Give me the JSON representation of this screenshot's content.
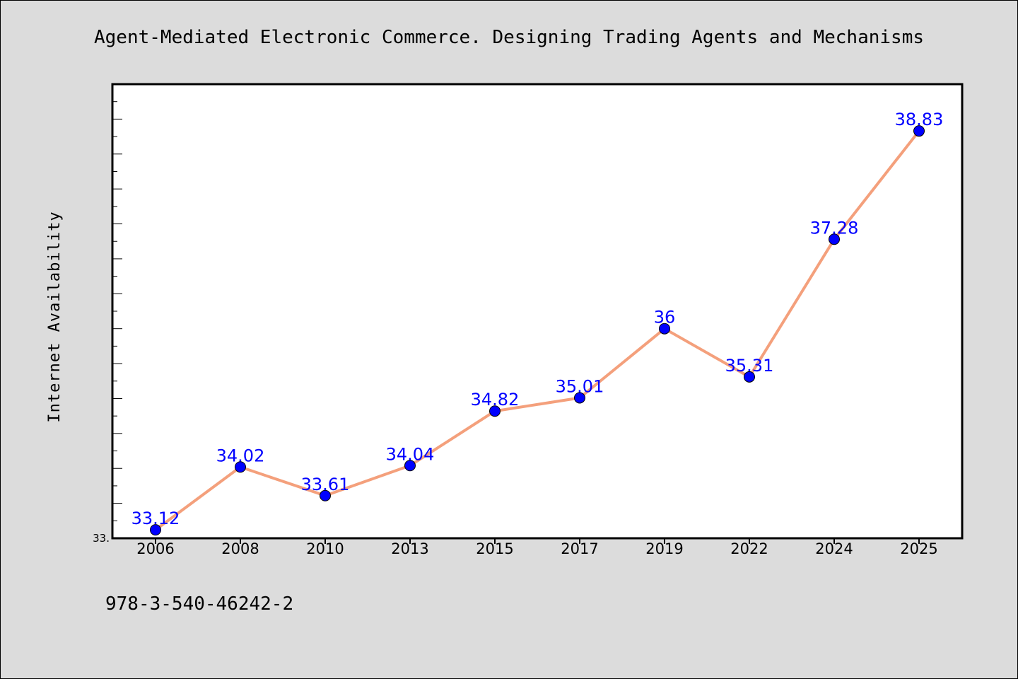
{
  "chart_data": {
    "type": "line",
    "title": "Agent-Mediated Electronic Commerce. Designing Trading Agents and Mechanisms",
    "xlabel": "",
    "ylabel": "Internet Availability",
    "categories": [
      "2006",
      "2008",
      "2010",
      "2013",
      "2015",
      "2017",
      "2019",
      "2022",
      "2024",
      "2025"
    ],
    "series": [
      {
        "values": [
          33.12,
          34.02,
          33.61,
          34.04,
          34.82,
          35.01,
          36,
          35.31,
          37.28,
          38.83
        ],
        "labels": [
          "33.12",
          "34.02",
          "33.61",
          "34.04",
          "34.82",
          "35.01",
          "36",
          "35.31",
          "37.28",
          "38.83"
        ]
      }
    ],
    "ylim": [
      33,
      39.5
    ],
    "y_tick_label": "33.",
    "grid": false,
    "colors": {
      "line": "#f4a07c",
      "marker": "#0000ff",
      "label": "#0000ff",
      "plot_bg": "#ffffff",
      "page_bg": "#dcdcdc"
    }
  },
  "footer": {
    "isbn": "978-3-540-46242-2"
  }
}
